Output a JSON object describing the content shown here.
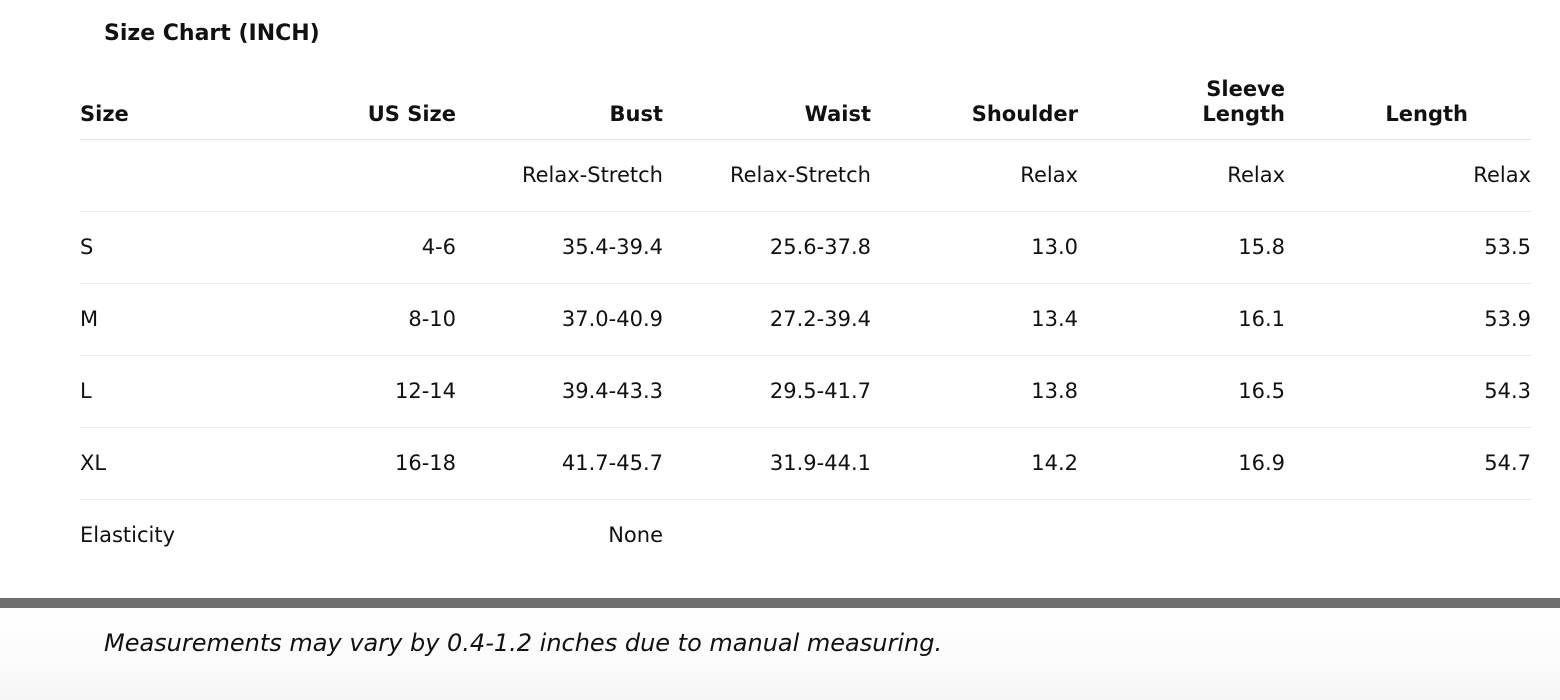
{
  "title": "Size Chart (INCH)",
  "table": {
    "headers": {
      "size": "Size",
      "us_size": "US Size",
      "bust": "Bust",
      "waist": "Waist",
      "shoulder": "Shoulder",
      "sleeve_length_line1": "Sleeve",
      "sleeve_length_line2": "Length",
      "length": "Length"
    },
    "fit_row": {
      "size": "",
      "us_size": "",
      "bust": "Relax-Stretch",
      "waist": "Relax-Stretch",
      "shoulder": "Relax",
      "sleeve_length": "Relax",
      "length": "Relax"
    },
    "rows": [
      {
        "size": "S",
        "us_size": "4-6",
        "bust": "35.4-39.4",
        "waist": "25.6-37.8",
        "shoulder": "13.0",
        "sleeve_length": "15.8",
        "length": "53.5"
      },
      {
        "size": "M",
        "us_size": "8-10",
        "bust": "37.0-40.9",
        "waist": "27.2-39.4",
        "shoulder": "13.4",
        "sleeve_length": "16.1",
        "length": "53.9"
      },
      {
        "size": "L",
        "us_size": "12-14",
        "bust": "39.4-43.3",
        "waist": "29.5-41.7",
        "shoulder": "13.8",
        "sleeve_length": "16.5",
        "length": "54.3"
      },
      {
        "size": "XL",
        "us_size": "16-18",
        "bust": "41.7-45.7",
        "waist": "31.9-44.1",
        "shoulder": "14.2",
        "sleeve_length": "16.9",
        "length": "54.7"
      }
    ],
    "elasticity_row": {
      "label": "Elasticity",
      "value": "None"
    }
  },
  "note": "Measurements may vary by 0.4-1.2 inches due to manual measuring."
}
